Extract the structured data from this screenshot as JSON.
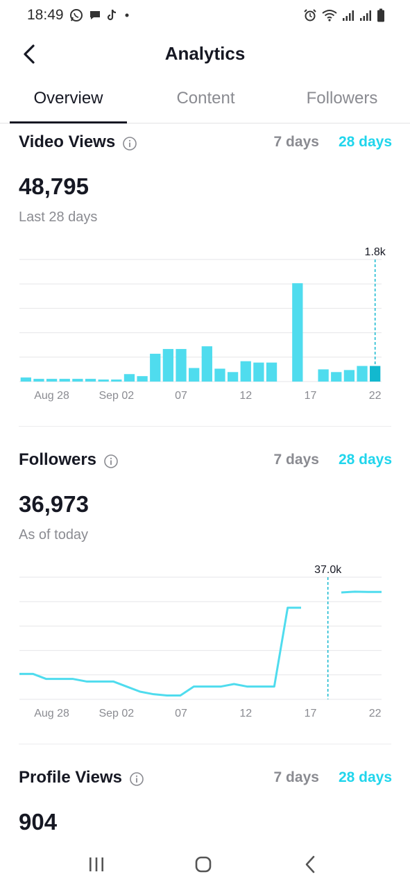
{
  "status_bar": {
    "time": "18:49",
    "left_icons": [
      "whatsapp-icon",
      "message-icon",
      "tiktok-icon",
      "dot-icon"
    ],
    "right_icons": [
      "alarm-icon",
      "wifi-icon",
      "signal-icon",
      "signal-icon",
      "battery-icon"
    ]
  },
  "header": {
    "title": "Analytics",
    "back_icon": "chevron-left-icon"
  },
  "tabs": [
    {
      "label": "Overview",
      "active": true
    },
    {
      "label": "Content",
      "active": false
    },
    {
      "label": "Followers",
      "active": false
    }
  ],
  "video_views": {
    "title": "Video Views",
    "info_icon": "info-icon",
    "range_7": "7 days",
    "range_28": "28 days",
    "value": "48,795",
    "subtitle": "Last 28 days"
  },
  "followers": {
    "title": "Followers",
    "info_icon": "info-icon",
    "range_7": "7 days",
    "range_28": "28 days",
    "value": "36,973",
    "subtitle": "As of today"
  },
  "profile_views": {
    "title": "Profile Views",
    "info_icon": "info-icon",
    "range_7": "7 days",
    "range_28": "28 days",
    "value": "904"
  },
  "colors": {
    "accent": "#20d5ec",
    "bar": "#4fdcee",
    "bar_selected": "#12b8cf",
    "text": "#161823",
    "muted": "#8a8b91",
    "grid": "#e6e6e8"
  },
  "chart_data": [
    {
      "type": "bar",
      "categories": [
        "Aug 26",
        "Aug 27",
        "Aug 28",
        "Aug 29",
        "Aug 30",
        "Aug 31",
        "Sep 01",
        "Sep 02",
        "Sep 03",
        "Sep 04",
        "Sep 05",
        "Sep 06",
        "Sep 07",
        "Sep 08",
        "Sep 09",
        "Sep 10",
        "Sep 11",
        "Sep 12",
        "Sep 13",
        "Sep 14",
        "Sep 15",
        "Sep 16",
        "Sep 17",
        "Sep 18",
        "Sep 19",
        "Sep 20",
        "Sep 21",
        "Sep 22"
      ],
      "tick_labels": [
        "Aug 28",
        "Sep 02",
        "07",
        "12",
        "17",
        "22"
      ],
      "tick_indices": [
        2,
        7,
        12,
        17,
        22,
        27
      ],
      "values": [
        60,
        40,
        40,
        40,
        40,
        40,
        30,
        30,
        110,
        80,
        410,
        480,
        480,
        200,
        520,
        190,
        140,
        300,
        280,
        280,
        0,
        1450,
        0,
        180,
        140,
        170,
        230,
        230
      ],
      "selected_index": 27,
      "tooltip": "1.8k",
      "ylim": [
        0,
        1800
      ],
      "grid": true
    },
    {
      "type": "line",
      "categories": [
        "Aug 26",
        "Aug 27",
        "Aug 28",
        "Aug 29",
        "Aug 30",
        "Aug 31",
        "Sep 01",
        "Sep 02",
        "Sep 03",
        "Sep 04",
        "Sep 05",
        "Sep 06",
        "Sep 07",
        "Sep 08",
        "Sep 09",
        "Sep 10",
        "Sep 11",
        "Sep 12",
        "Sep 13",
        "Sep 14",
        "Sep 15",
        "Sep 16",
        "Sep 17",
        "Sep 18",
        "Sep 19",
        "Sep 20",
        "Sep 21",
        "Sep 22"
      ],
      "tick_labels": [
        "Aug 28",
        "Sep 02",
        "07",
        "12",
        "17",
        "22"
      ],
      "tick_indices": [
        2,
        7,
        12,
        17,
        22,
        27
      ],
      "values": [
        36620,
        36620,
        36600,
        36600,
        36600,
        36590,
        36590,
        36590,
        36570,
        36550,
        36540,
        36535,
        36535,
        36570,
        36570,
        36570,
        36580,
        36570,
        36570,
        36570,
        36880,
        36880,
        null,
        null,
        36940,
        36943,
        36942,
        36942
      ],
      "selected_index": 23,
      "tooltip": "37.0k",
      "ylim": [
        36520,
        37000
      ],
      "grid": true
    }
  ],
  "nav_bar": [
    "recents-icon",
    "home-icon",
    "back-icon"
  ]
}
